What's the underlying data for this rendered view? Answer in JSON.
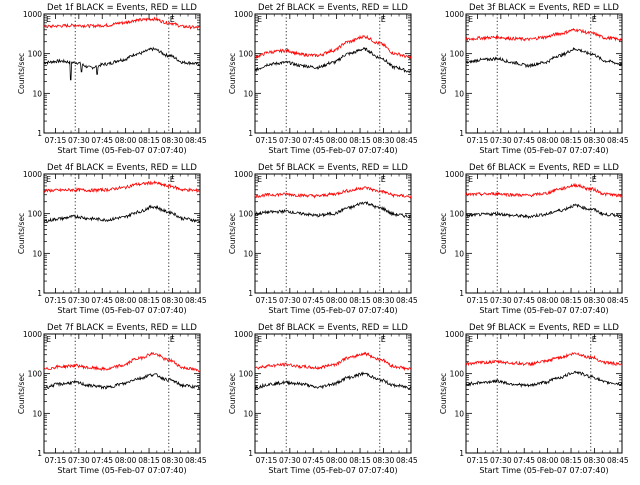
{
  "figure": {
    "background": "#ffffff",
    "axis_color": "#000000",
    "series_colors": {
      "events": "#000000",
      "lld": "#ff0000"
    },
    "ylabel": "Counts/sec",
    "xlabel": "Start Time (05-Feb-07 07:07:40)",
    "xticks": [
      "07:15",
      "07:30",
      "07:45",
      "08:00",
      "08:15",
      "08:30",
      "08:45"
    ],
    "yticks": [
      "1",
      "10",
      "100",
      "1000"
    ],
    "marker_left": "E",
    "marker_right": "E"
  },
  "chart_data": [
    {
      "type": "line",
      "title": "Det 1f BLACK = Events, RED = LLD",
      "x_unit": "minutes from 07:07:40",
      "x": [
        0,
        10,
        20,
        30,
        40,
        50,
        60,
        70,
        80,
        90,
        100
      ],
      "ylim": [
        1,
        1000
      ],
      "yscale": "log",
      "event_markers_x": [
        20,
        80
      ],
      "series": [
        {
          "name": "Events",
          "color": "#000000",
          "values": [
            60,
            65,
            60,
            45,
            55,
            70,
            100,
            130,
            90,
            60,
            55
          ]
        },
        {
          "name": "LLD",
          "color": "#ff0000",
          "values": [
            480,
            500,
            520,
            500,
            520,
            600,
            700,
            750,
            600,
            480,
            450
          ]
        }
      ],
      "dips": [
        {
          "x": 17,
          "value": 22
        },
        {
          "x": 24,
          "value": 35
        },
        {
          "x": 34,
          "value": 30
        }
      ]
    },
    {
      "type": "line",
      "title": "Det 2f BLACK = Events, RED = LLD",
      "x_unit": "minutes from 07:07:40",
      "x": [
        0,
        10,
        20,
        30,
        40,
        50,
        60,
        70,
        80,
        90,
        100
      ],
      "ylim": [
        1,
        1000
      ],
      "yscale": "log",
      "event_markers_x": [
        20,
        80
      ],
      "series": [
        {
          "name": "Events",
          "color": "#000000",
          "values": [
            40,
            55,
            60,
            50,
            45,
            60,
            100,
            130,
            80,
            45,
            35
          ]
        },
        {
          "name": "LLD",
          "color": "#ff0000",
          "values": [
            85,
            110,
            120,
            95,
            90,
            120,
            200,
            270,
            180,
            100,
            80
          ]
        }
      ]
    },
    {
      "type": "line",
      "title": "Det 3f BLACK = Events, RED = LLD",
      "x_unit": "minutes from 07:07:40",
      "x": [
        0,
        10,
        20,
        30,
        40,
        50,
        60,
        70,
        80,
        90,
        100
      ],
      "ylim": [
        1,
        1000
      ],
      "yscale": "log",
      "event_markers_x": [
        20,
        80
      ],
      "series": [
        {
          "name": "Events",
          "color": "#000000",
          "values": [
            60,
            70,
            75,
            60,
            50,
            60,
            90,
            130,
            100,
            65,
            55
          ]
        },
        {
          "name": "LLD",
          "color": "#ff0000",
          "values": [
            230,
            250,
            260,
            240,
            230,
            260,
            320,
            400,
            330,
            250,
            230
          ]
        }
      ]
    },
    {
      "type": "line",
      "title": "Det 4f BLACK = Events, RED = LLD",
      "x_unit": "minutes from 07:07:40",
      "x": [
        0,
        10,
        20,
        30,
        40,
        50,
        60,
        70,
        80,
        90,
        100
      ],
      "ylim": [
        1,
        1000
      ],
      "yscale": "log",
      "event_markers_x": [
        20,
        80
      ],
      "series": [
        {
          "name": "Events",
          "color": "#000000",
          "values": [
            65,
            75,
            85,
            75,
            70,
            80,
            110,
            150,
            110,
            75,
            65
          ]
        },
        {
          "name": "LLD",
          "color": "#ff0000",
          "values": [
            380,
            390,
            400,
            390,
            400,
            450,
            550,
            600,
            500,
            400,
            380
          ]
        }
      ]
    },
    {
      "type": "line",
      "title": "Det 5f BLACK = Events, RED = LLD",
      "x_unit": "minutes from 07:07:40",
      "x": [
        0,
        10,
        20,
        30,
        40,
        50,
        60,
        70,
        80,
        90,
        100
      ],
      "ylim": [
        1,
        1000
      ],
      "yscale": "log",
      "event_markers_x": [
        20,
        80
      ],
      "series": [
        {
          "name": "Events",
          "color": "#000000",
          "values": [
            100,
            110,
            115,
            100,
            90,
            100,
            140,
            190,
            140,
            95,
            85
          ]
        },
        {
          "name": "LLD",
          "color": "#ff0000",
          "values": [
            280,
            300,
            310,
            290,
            280,
            310,
            380,
            450,
            370,
            290,
            270
          ]
        }
      ]
    },
    {
      "type": "line",
      "title": "Det 6f BLACK = Events, RED = LLD",
      "x_unit": "minutes from 07:07:40",
      "x": [
        0,
        10,
        20,
        30,
        40,
        50,
        60,
        70,
        80,
        90,
        100
      ],
      "ylim": [
        1,
        1000
      ],
      "yscale": "log",
      "event_markers_x": [
        20,
        80
      ],
      "series": [
        {
          "name": "Events",
          "color": "#000000",
          "values": [
            90,
            95,
            100,
            90,
            85,
            95,
            120,
            160,
            130,
            95,
            90
          ]
        },
        {
          "name": "LLD",
          "color": "#ff0000",
          "values": [
            300,
            310,
            320,
            300,
            290,
            320,
            420,
            520,
            420,
            310,
            280
          ]
        }
      ]
    },
    {
      "type": "line",
      "title": "Det 7f BLACK = Events, RED = LLD",
      "x_unit": "minutes from 07:07:40",
      "x": [
        0,
        10,
        20,
        30,
        40,
        50,
        60,
        70,
        80,
        90,
        100
      ],
      "ylim": [
        1,
        1000
      ],
      "yscale": "log",
      "event_markers_x": [
        20,
        80
      ],
      "series": [
        {
          "name": "Events",
          "color": "#000000",
          "values": [
            45,
            55,
            60,
            50,
            45,
            55,
            75,
            95,
            70,
            50,
            45
          ]
        },
        {
          "name": "LLD",
          "color": "#ff0000",
          "values": [
            130,
            150,
            160,
            140,
            130,
            160,
            240,
            320,
            220,
            140,
            120
          ]
        }
      ]
    },
    {
      "type": "line",
      "title": "Det 8f BLACK = Events, RED = LLD",
      "x_unit": "minutes from 07:07:40",
      "x": [
        0,
        10,
        20,
        30,
        40,
        50,
        60,
        70,
        80,
        90,
        100
      ],
      "ylim": [
        1,
        1000
      ],
      "yscale": "log",
      "event_markers_x": [
        20,
        80
      ],
      "series": [
        {
          "name": "Events",
          "color": "#000000",
          "values": [
            45,
            55,
            60,
            55,
            45,
            55,
            80,
            100,
            70,
            50,
            45
          ]
        },
        {
          "name": "LLD",
          "color": "#ff0000",
          "values": [
            140,
            160,
            170,
            150,
            140,
            170,
            250,
            320,
            230,
            150,
            130
          ]
        }
      ]
    },
    {
      "type": "line",
      "title": "Det 9f BLACK = Events, RED = LLD",
      "x_unit": "minutes from 07:07:40",
      "x": [
        0,
        10,
        20,
        30,
        40,
        50,
        60,
        70,
        80,
        90,
        100
      ],
      "ylim": [
        1,
        1000
      ],
      "yscale": "log",
      "event_markers_x": [
        20,
        80
      ],
      "series": [
        {
          "name": "Events",
          "color": "#000000",
          "values": [
            55,
            60,
            65,
            55,
            50,
            60,
            80,
            110,
            85,
            60,
            55
          ]
        },
        {
          "name": "LLD",
          "color": "#ff0000",
          "values": [
            180,
            190,
            200,
            185,
            175,
            200,
            260,
            320,
            260,
            190,
            170
          ]
        }
      ]
    }
  ]
}
